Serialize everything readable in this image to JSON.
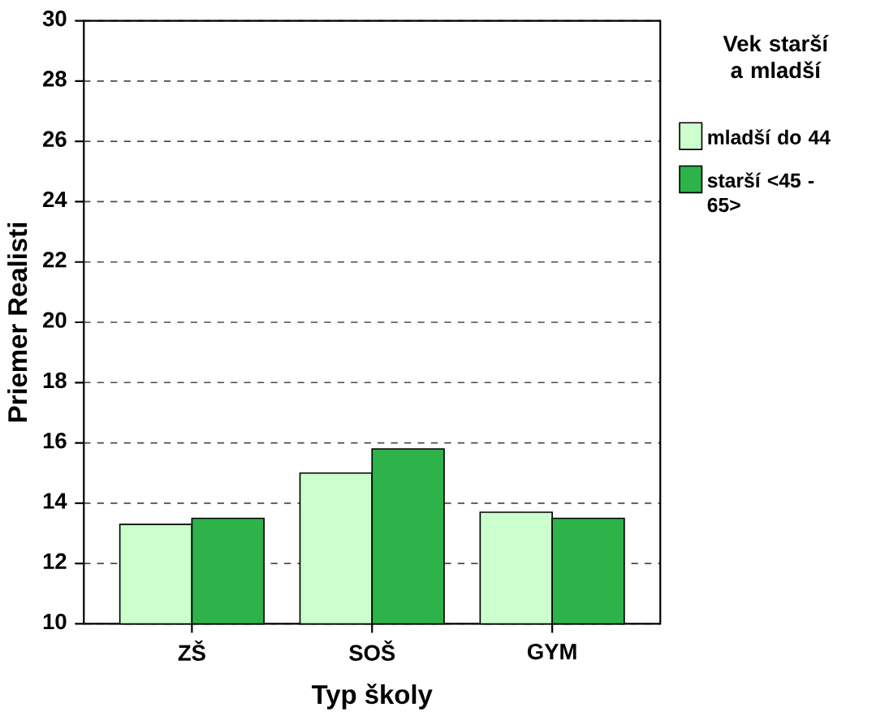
{
  "chart_data": {
    "type": "bar",
    "xlabel": "Typ školy",
    "ylabel": "Priemer Realisti",
    "legend_title": "Vek starší a mladší",
    "categories": [
      "ZŠ",
      "SOŠ",
      "GYM"
    ],
    "series": [
      {
        "name": "mladší do  44",
        "color": "#ccffcc",
        "values": [
          13.3,
          15.0,
          13.7
        ]
      },
      {
        "name": "starší <45 - 65>",
        "color": "#2db34a",
        "values": [
          13.5,
          15.8,
          13.5
        ]
      }
    ],
    "ylim": [
      10,
      30
    ],
    "yticks": [
      10,
      12,
      14,
      16,
      18,
      20,
      22,
      24,
      26,
      28,
      30
    ],
    "grid": "y",
    "legend": "top right"
  }
}
